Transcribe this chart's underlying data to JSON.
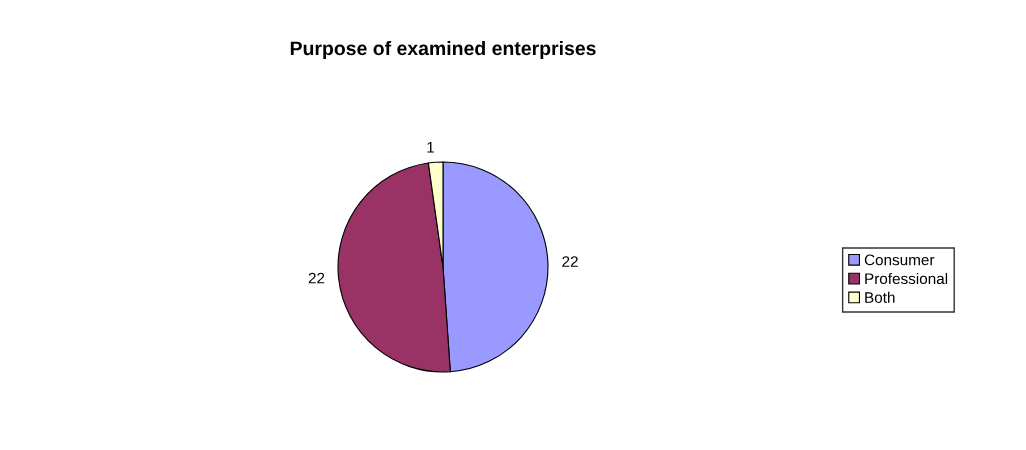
{
  "chart_data": {
    "type": "pie",
    "title": "Purpose of examined enterprises",
    "categories": [
      "Consumer",
      "Professional",
      "Both"
    ],
    "values": [
      22,
      22,
      1
    ],
    "colors": [
      "#9999ff",
      "#993366",
      "#ffffcc"
    ],
    "data_labels": true,
    "legend": "right"
  }
}
